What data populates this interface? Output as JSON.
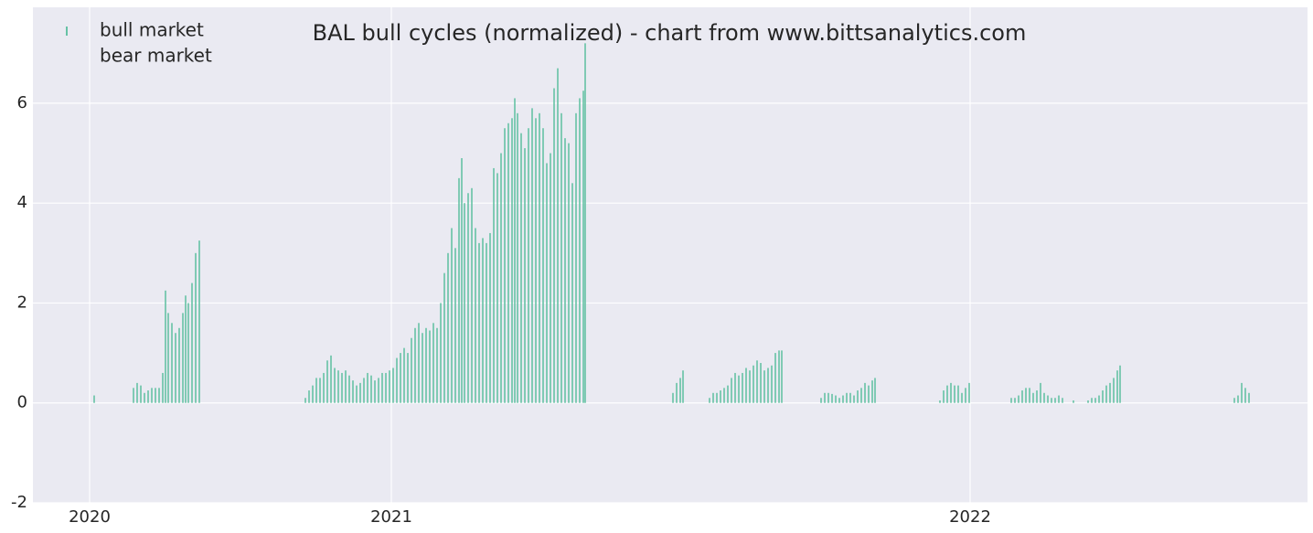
{
  "chart_data": {
    "type": "bar",
    "title": "BAL bull cycles (normalized)  - chart from www.bittsanalytics.com",
    "series": [
      {
        "name": "bull market",
        "color": "#66c2a5",
        "x": [
          67,
          110,
          114,
          118,
          122,
          126,
          130,
          134,
          138,
          142,
          145,
          148,
          152,
          156,
          160,
          164,
          167,
          170,
          174,
          178,
          182,
          298,
          302,
          306,
          310,
          314,
          318,
          322,
          326,
          330,
          334,
          338,
          342,
          346,
          350,
          354,
          358,
          362,
          366,
          370,
          374,
          378,
          382,
          386,
          390,
          394,
          398,
          402,
          406,
          410,
          414,
          418,
          422,
          426,
          430,
          434,
          438,
          442,
          446,
          450,
          454,
          458,
          462,
          466,
          469,
          472,
          476,
          480,
          484,
          488,
          492,
          496,
          500,
          504,
          508,
          512,
          516,
          520,
          524,
          527,
          530,
          534,
          538,
          542,
          546,
          550,
          554,
          558,
          562,
          566,
          570,
          574,
          578,
          582,
          586,
          590,
          594,
          598,
          602,
          604,
          700,
          704,
          708,
          711,
          740,
          744,
          748,
          752,
          756,
          760,
          764,
          768,
          772,
          776,
          780,
          784,
          788,
          792,
          796,
          800,
          804,
          808,
          812,
          816,
          819,
          862,
          866,
          870,
          874,
          878,
          882,
          886,
          890,
          894,
          898,
          902,
          906,
          910,
          914,
          918,
          921,
          992,
          996,
          1000,
          1004,
          1008,
          1012,
          1016,
          1020,
          1024,
          1070,
          1074,
          1078,
          1082,
          1086,
          1090,
          1094,
          1098,
          1102,
          1106,
          1110,
          1114,
          1118,
          1122,
          1126,
          1138,
          1154,
          1158,
          1162,
          1166,
          1170,
          1174,
          1178,
          1182,
          1186,
          1189,
          1314,
          1318,
          1322,
          1326,
          1330
        ],
        "values": [
          0.15,
          0.3,
          0.4,
          0.35,
          0.2,
          0.25,
          0.3,
          0.3,
          0.3,
          0.6,
          2.25,
          1.8,
          1.6,
          1.4,
          1.5,
          1.8,
          2.15,
          2.0,
          2.4,
          3.0,
          3.25,
          0.1,
          0.25,
          0.35,
          0.5,
          0.5,
          0.6,
          0.85,
          0.95,
          0.7,
          0.65,
          0.6,
          0.65,
          0.55,
          0.45,
          0.35,
          0.4,
          0.5,
          0.6,
          0.55,
          0.45,
          0.5,
          0.6,
          0.6,
          0.65,
          0.7,
          0.9,
          1.0,
          1.1,
          1.0,
          1.3,
          1.5,
          1.6,
          1.4,
          1.5,
          1.45,
          1.6,
          1.5,
          2.0,
          2.6,
          3.0,
          3.5,
          3.1,
          4.5,
          4.9,
          4.0,
          4.2,
          4.3,
          3.5,
          3.2,
          3.3,
          3.2,
          3.4,
          4.7,
          4.6,
          5.0,
          5.5,
          5.6,
          5.7,
          6.1,
          5.8,
          5.4,
          5.1,
          5.5,
          5.9,
          5.7,
          5.8,
          5.5,
          4.8,
          5.0,
          6.3,
          6.7,
          5.8,
          5.3,
          5.2,
          4.4,
          5.8,
          6.1,
          6.25,
          7.2,
          0.2,
          0.4,
          0.5,
          0.65,
          0.1,
          0.2,
          0.2,
          0.25,
          0.3,
          0.35,
          0.5,
          0.6,
          0.55,
          0.6,
          0.7,
          0.65,
          0.75,
          0.85,
          0.8,
          0.65,
          0.7,
          0.75,
          1.0,
          1.05,
          1.05,
          0.1,
          0.2,
          0.2,
          0.18,
          0.15,
          0.1,
          0.15,
          0.2,
          0.2,
          0.15,
          0.25,
          0.3,
          0.4,
          0.35,
          0.45,
          0.5,
          0.05,
          0.25,
          0.35,
          0.4,
          0.35,
          0.35,
          0.2,
          0.3,
          0.4,
          0.1,
          0.1,
          0.15,
          0.25,
          0.3,
          0.3,
          0.2,
          0.25,
          0.4,
          0.2,
          0.15,
          0.1,
          0.1,
          0.15,
          0.1,
          0.05,
          0.05,
          0.1,
          0.1,
          0.15,
          0.25,
          0.35,
          0.4,
          0.5,
          0.65,
          0.75,
          0.1,
          0.15,
          0.4,
          0.3,
          0.2
        ]
      },
      {
        "name": "bear market",
        "x": [],
        "values": []
      }
    ],
    "xlim": [
      0,
      1394
    ],
    "xticks": [
      {
        "value": 62,
        "label": "2020"
      },
      {
        "value": 392,
        "label": "2021"
      },
      {
        "value": 1025,
        "label": "2022"
      }
    ],
    "ylim": [
      -2,
      7.92
    ],
    "yticks": [
      -2,
      0,
      2,
      4,
      6
    ],
    "grid": true,
    "legend": "upper left"
  }
}
